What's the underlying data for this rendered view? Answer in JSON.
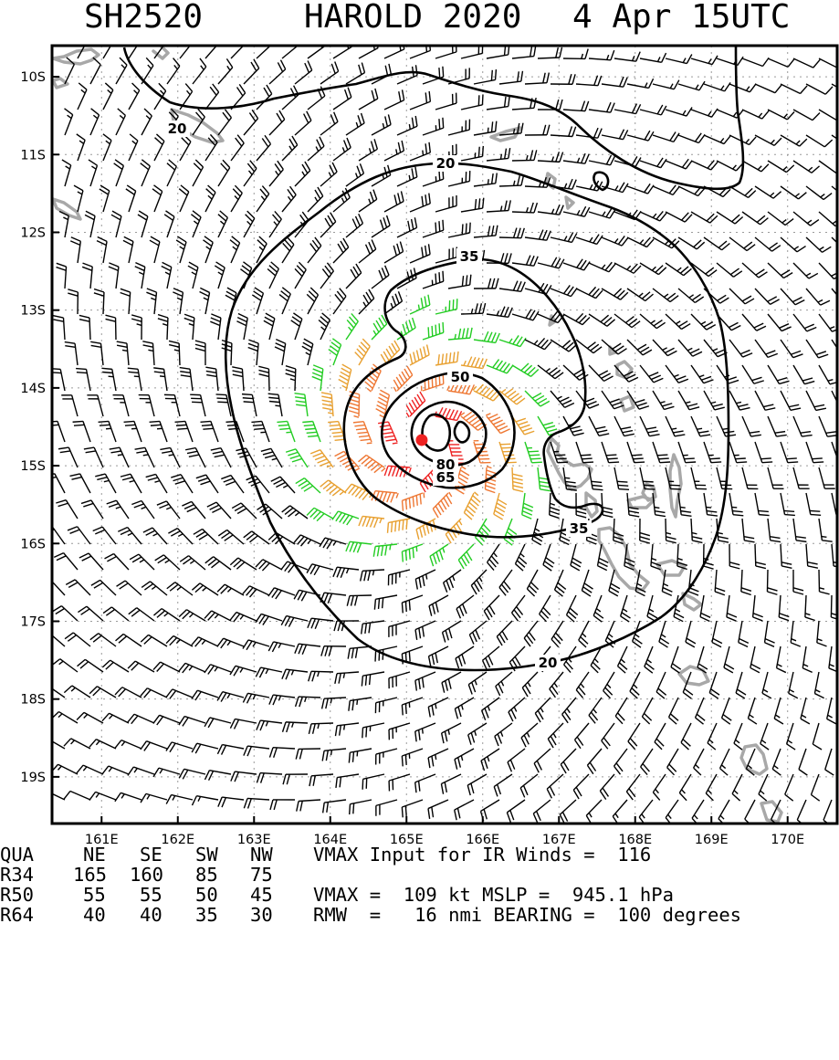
{
  "header": {
    "storm_id": "SH2520",
    "storm_name": "HAROLD 2020",
    "valid_time": "4 Apr 15UTC"
  },
  "map": {
    "lat_labels": [
      "10S",
      "11S",
      "12S",
      "13S",
      "14S",
      "15S",
      "16S",
      "17S",
      "18S",
      "19S"
    ],
    "lat_values": [
      10,
      11,
      12,
      13,
      14,
      15,
      16,
      17,
      18,
      19
    ],
    "lon_labels": [
      "161E",
      "162E",
      "163E",
      "164E",
      "165E",
      "166E",
      "167E",
      "168E",
      "169E",
      "170E"
    ],
    "lon_values": [
      161,
      162,
      163,
      164,
      165,
      166,
      167,
      168,
      169,
      170
    ],
    "lat_range": [
      9.6,
      19.6
    ],
    "lon_range": [
      160.35,
      170.65
    ],
    "center": {
      "lat": 14.67,
      "lon": 165.2
    },
    "contour_labels": [
      "20",
      "20",
      "20",
      "35",
      "35",
      "50",
      "65",
      "80"
    ],
    "colors": {
      "below34": "#000000",
      "gale": "#22cc22",
      "storm": "#e8a030",
      "hurricane": "#ee7733",
      "core": "#ee2222",
      "coast": "#a8a8a8",
      "center_marker": "#ee2222",
      "contour": "#000000"
    }
  },
  "footer": {
    "headers": [
      "QUA",
      "NE",
      "SE",
      "SW",
      "NW"
    ],
    "rows": [
      {
        "label": "R34",
        "values": [
          "165",
          "160",
          "85",
          "75"
        ]
      },
      {
        "label": "R50",
        "values": [
          "55",
          "55",
          "50",
          "45"
        ]
      },
      {
        "label": "R64",
        "values": [
          "40",
          "40",
          "35",
          "30"
        ]
      }
    ],
    "line1": "VMAX Input for IR Winds =  116",
    "line3": "VMAX =  109 kt MSLP =  945.1 hPa",
    "line4": "RMW  =   16 nmi BEARING =  100 degrees"
  }
}
